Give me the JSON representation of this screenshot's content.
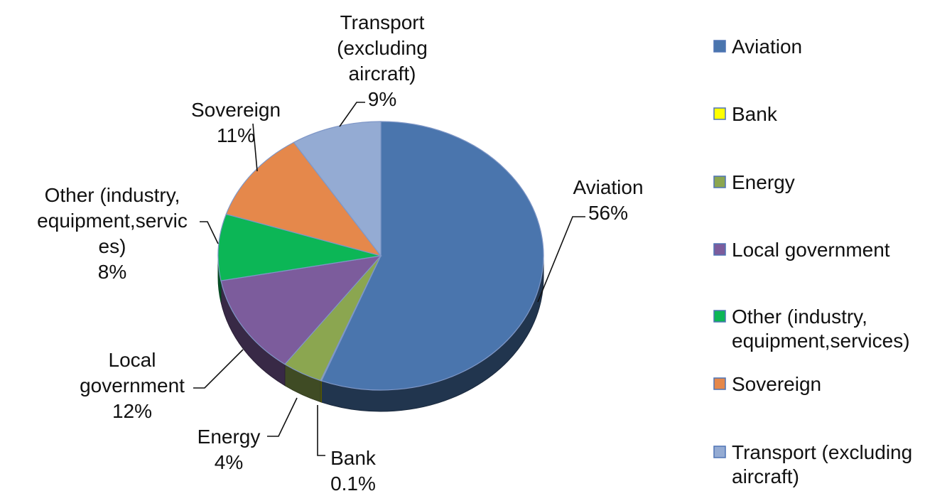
{
  "chart_data": {
    "type": "pie",
    "title": "",
    "three_d": true,
    "slices": [
      {
        "name": "Aviation",
        "value": 56,
        "label": "56%",
        "color": "#4A75AD"
      },
      {
        "name": "Bank",
        "value": 0.1,
        "label": "0.1%",
        "color": "#FFFF00"
      },
      {
        "name": "Energy",
        "value": 4,
        "label": "4%",
        "color": "#8BA650"
      },
      {
        "name": "Local government",
        "value": 12,
        "label": "12%",
        "color": "#7C5C9C"
      },
      {
        "name": "Other (industry, equipment,services)",
        "value": 8,
        "label": "8%",
        "color": "#0CB656"
      },
      {
        "name": "Sovereign",
        "value": 11,
        "label": "11%",
        "color": "#E5884B"
      },
      {
        "name": "Transport (excluding aircraft)",
        "value": 9,
        "label": "9%",
        "color": "#94ABD3"
      }
    ],
    "slice_label_lines": [
      [
        "Aviation",
        "56%"
      ],
      [
        "Bank",
        "0.1%"
      ],
      [
        "Energy",
        "4%"
      ],
      [
        "Local",
        "government",
        "12%"
      ],
      [
        "Other (industry,",
        "equipment,servic",
        "es)",
        "8%"
      ],
      [
        "Sovereign",
        "11%"
      ],
      [
        "Transport",
        "(excluding",
        "aircraft)",
        "9%"
      ]
    ],
    "legend": {
      "position": "right",
      "entries": [
        [
          "Aviation"
        ],
        [
          "Bank"
        ],
        [
          "Energy"
        ],
        [
          "Local government"
        ],
        [
          "Other (industry,",
          "equipment,services)"
        ],
        [
          "Sovereign"
        ],
        [
          "Transport (excluding",
          "aircraft)"
        ]
      ]
    }
  }
}
